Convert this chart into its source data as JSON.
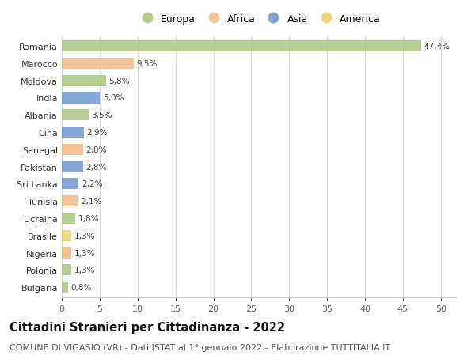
{
  "countries": [
    "Romania",
    "Marocco",
    "Moldova",
    "India",
    "Albania",
    "Cina",
    "Senegal",
    "Pakistan",
    "Sri Lanka",
    "Tunisia",
    "Ucraina",
    "Brasile",
    "Nigeria",
    "Polonia",
    "Bulgaria"
  ],
  "values": [
    47.4,
    9.5,
    5.8,
    5.0,
    3.5,
    2.9,
    2.8,
    2.8,
    2.2,
    2.1,
    1.8,
    1.3,
    1.3,
    1.3,
    0.8
  ],
  "labels": [
    "47,4%",
    "9,5%",
    "5,8%",
    "5,0%",
    "3,5%",
    "2,9%",
    "2,8%",
    "2,8%",
    "2,2%",
    "2,1%",
    "1,8%",
    "1,3%",
    "1,3%",
    "1,3%",
    "0,8%"
  ],
  "continents": [
    "Europa",
    "Africa",
    "Europa",
    "Asia",
    "Europa",
    "Asia",
    "Africa",
    "Asia",
    "Asia",
    "Africa",
    "Europa",
    "America",
    "Africa",
    "Europa",
    "Europa"
  ],
  "colors": {
    "Europa": "#a8c57e",
    "Africa": "#f0b882",
    "Asia": "#6b93cc",
    "America": "#f0d060"
  },
  "xlim": [
    0,
    52
  ],
  "xticks": [
    0,
    5,
    10,
    15,
    20,
    25,
    30,
    35,
    40,
    45,
    50
  ],
  "title": "Cittadini Stranieri per Cittadinanza - 2022",
  "subtitle": "COMUNE DI VIGASIO (VR) - Dati ISTAT al 1° gennaio 2022 - Elaborazione TUTTITALIA.IT",
  "bg_color": "#ffffff",
  "bar_height": 0.65,
  "title_fontsize": 10.5,
  "subtitle_fontsize": 8,
  "label_fontsize": 7.5,
  "tick_fontsize": 8,
  "legend_fontsize": 9,
  "legend_order": [
    "Europa",
    "Africa",
    "Asia",
    "America"
  ]
}
